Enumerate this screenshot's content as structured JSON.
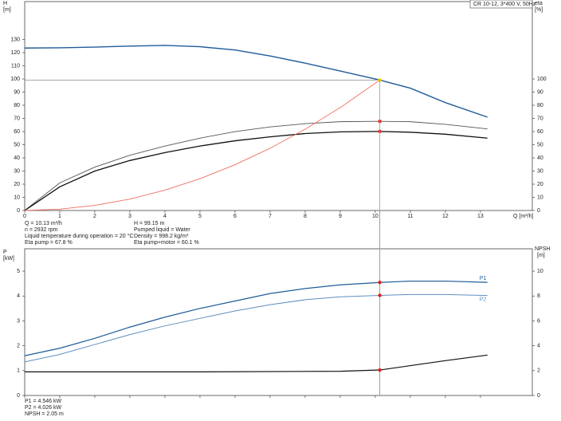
{
  "chart_data": [
    {
      "type": "line",
      "model": "CR 10-12, 3*400 V, 50Hz",
      "y_label": "H",
      "y_unit": "[m]",
      "y2_label": "eta",
      "y2_unit": "[%]",
      "x_label": "Q [m³/h]",
      "xlim": [
        0,
        14.48
      ],
      "xticks": [
        0,
        1,
        2,
        3,
        4,
        5,
        6,
        7,
        8,
        9,
        10,
        11,
        12,
        13
      ],
      "ylim": [
        0,
        158.8
      ],
      "yticks": [
        0,
        10,
        20,
        30,
        40,
        50,
        60,
        70,
        80,
        90,
        100,
        110,
        120,
        130
      ],
      "y2lim": [
        0,
        158.8
      ],
      "y2ticks": [
        0,
        10,
        20,
        30,
        40,
        50,
        60,
        70,
        80,
        90,
        100
      ],
      "duty_q": 10.13,
      "series": [
        {
          "color": "#1f5c99",
          "width": 1.4,
          "duty_color": "#f5c400",
          "x": [
            0,
            1,
            2,
            3,
            4,
            5,
            6,
            7,
            8,
            9,
            10,
            10.13,
            11,
            12,
            13.2
          ],
          "values": [
            123.5,
            123.7,
            124.2,
            125,
            125.5,
            124.5,
            122,
            117.5,
            112,
            106,
            100,
            99.15,
            93,
            82,
            71
          ]
        },
        {
          "color": "#555555",
          "width": 0.9,
          "axis": "y2",
          "duty_color": "#e02020",
          "x": [
            0,
            1,
            2,
            3,
            4,
            5,
            6,
            7,
            8,
            9,
            10,
            10.13,
            11,
            12,
            13.2
          ],
          "values": [
            0,
            21,
            33,
            42,
            49,
            55,
            60,
            63.5,
            66,
            67.5,
            67.8,
            67.8,
            67.5,
            65.5,
            62
          ]
        },
        {
          "color": "#111111",
          "width": 1.3,
          "axis": "y2",
          "duty_color": "#e02020",
          "x": [
            0,
            1,
            2,
            3,
            4,
            5,
            6,
            7,
            8,
            9,
            10,
            10.13,
            11,
            12,
            13.2
          ],
          "values": [
            0,
            18,
            30,
            38,
            44,
            49,
            53,
            56,
            58.5,
            59.8,
            60.1,
            60.1,
            59.5,
            58,
            55
          ]
        },
        {
          "color": "#f07060",
          "width": 0.9,
          "x": [
            0,
            1,
            2,
            3,
            4,
            5,
            6,
            7,
            8,
            9,
            10.13
          ],
          "values": [
            0,
            1,
            3.9,
            8.7,
            15.5,
            24.2,
            34.8,
            47.3,
            61.8,
            78.2,
            99.15
          ]
        }
      ],
      "info": [
        [
          "Q = 10.13 m³/h",
          "n = 2932 rpm",
          "Liquid temperature during operation = 20 °C",
          "Eta pump = 67.8 %"
        ],
        [
          "H = 99.15 m",
          "Pumped liquid = Water",
          "Density = 998.2 kg/m³",
          "Eta pump+motor = 60.1 %"
        ]
      ]
    },
    {
      "type": "line",
      "y_label": "P",
      "y_unit": "[kW]",
      "y2_label": "NPSH",
      "y2_unit": "[m]",
      "xlim": [
        0,
        14.48
      ],
      "xticks": [
        0,
        1,
        2,
        3,
        4,
        5,
        6,
        7,
        8,
        9,
        10,
        11,
        12,
        13
      ],
      "ylim": [
        0,
        5.9
      ],
      "yticks": [
        0,
        1,
        2,
        3,
        4,
        5
      ],
      "y2lim": [
        0,
        11.8
      ],
      "y2ticks": [
        0,
        2,
        4,
        6,
        8,
        10
      ],
      "duty_q": 10.13,
      "series": [
        {
          "name": "P1",
          "color": "#1f5c99",
          "width": 1.2,
          "duty_color": "#e02020",
          "x": [
            0,
            1,
            2,
            3,
            4,
            5,
            6,
            7,
            8,
            9,
            10.13,
            11,
            12,
            13.2
          ],
          "values": [
            1.6,
            1.9,
            2.3,
            2.75,
            3.15,
            3.5,
            3.8,
            4.1,
            4.3,
            4.45,
            4.546,
            4.6,
            4.6,
            4.55
          ]
        },
        {
          "name": "P2",
          "color": "#5f8fbf",
          "width": 1,
          "duty_color": "#e02020",
          "x": [
            0,
            1,
            2,
            3,
            4,
            5,
            6,
            7,
            8,
            9,
            10.13,
            11,
            12,
            13.2
          ],
          "values": [
            1.35,
            1.65,
            2.05,
            2.45,
            2.8,
            3.1,
            3.4,
            3.65,
            3.85,
            3.97,
            4.026,
            4.06,
            4.06,
            4.02
          ]
        },
        {
          "color": "#111111",
          "width": 1.2,
          "axis": "y2",
          "duty_color": "#e02020",
          "x": [
            0,
            5,
            9,
            10.13,
            11,
            12,
            13.2
          ],
          "values": [
            1.9,
            1.9,
            1.95,
            2.05,
            2.4,
            2.8,
            3.25
          ]
        }
      ],
      "info": [
        [
          "P1 = 4.546 kW",
          "P2 = 4.026 kW",
          "NPSH = 2.05 m"
        ]
      ]
    }
  ]
}
